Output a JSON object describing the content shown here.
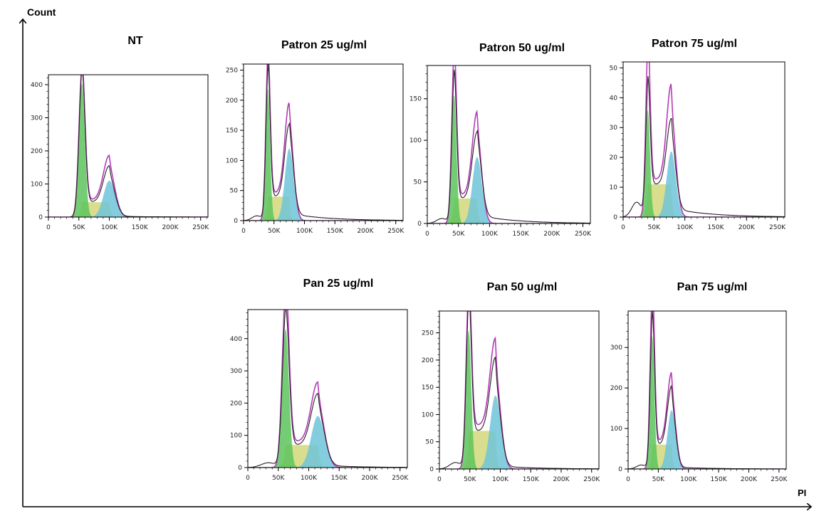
{
  "figure": {
    "y_axis_label": "Count",
    "x_axis_label": "PI"
  },
  "colors": {
    "g1_fill": "#5cc45c",
    "s_fill": "#d2d77a",
    "g2_fill": "#6ec4d9",
    "fit_line": "#b43cb4",
    "data_line": "#222222"
  },
  "chart_data": [
    {
      "type": "area",
      "title": "NT",
      "xticks": [
        "0",
        "50K",
        "100K",
        "150K",
        "200K",
        "250K"
      ],
      "xlim": [
        0,
        262000
      ],
      "yticks": [
        "0",
        "100",
        "200",
        "300",
        "400"
      ],
      "ylim": [
        0,
        430
      ],
      "g1": {
        "peak_x": 55000,
        "height": 405
      },
      "g2": {
        "peak_x": 100000,
        "height": 110
      },
      "s_height": 45,
      "fit_peaks": [
        415,
        135
      ],
      "tail": 3,
      "debris": 0
    },
    {
      "type": "area",
      "title": "Patron 25 ug/ml",
      "xticks": [
        "0",
        "50K",
        "100K",
        "150K",
        "200K",
        "250K"
      ],
      "xlim": [
        0,
        262000
      ],
      "yticks": [
        "0",
        "50",
        "100",
        "150",
        "200",
        "250"
      ],
      "ylim": [
        0,
        260
      ],
      "g1": {
        "peak_x": 40000,
        "height": 220
      },
      "g2": {
        "peak_x": 75000,
        "height": 120
      },
      "s_height": 40,
      "fit_peaks": [
        242,
        150
      ],
      "tail": 12,
      "debris": 8
    },
    {
      "type": "area",
      "title": "Patron 50 ug/ml",
      "xticks": [
        "0",
        "50K",
        "100K",
        "150K",
        "200K",
        "250K"
      ],
      "xlim": [
        0,
        262000
      ],
      "yticks": [
        "0",
        "50",
        "100",
        "150"
      ],
      "ylim": [
        0,
        190
      ],
      "g1": {
        "peak_x": 43000,
        "height": 155
      },
      "g2": {
        "peak_x": 80000,
        "height": 80
      },
      "s_height": 30,
      "fit_peaks": [
        182,
        100
      ],
      "tail": 10,
      "debris": 6
    },
    {
      "type": "area",
      "title": "Patron 75 ug/ml",
      "xticks": [
        "0",
        "50K",
        "100K",
        "150K",
        "200K",
        "250K"
      ],
      "xlim": [
        0,
        262000
      ],
      "yticks": [
        "0",
        "10",
        "20",
        "30",
        "40",
        "50"
      ],
      "ylim": [
        0,
        52
      ],
      "g1": {
        "peak_x": 40000,
        "height": 36
      },
      "g2": {
        "peak_x": 78000,
        "height": 22
      },
      "s_height": 11,
      "fit_peaks": [
        49,
        32
      ],
      "tail": 3,
      "debris": 5
    },
    {
      "type": "area",
      "title": "Pan 25 ug/ml",
      "xticks": [
        "0",
        "50K",
        "100K",
        "150K",
        "200K",
        "250K"
      ],
      "xlim": [
        0,
        262000
      ],
      "yticks": [
        "0",
        "100",
        "200",
        "300",
        "400"
      ],
      "ylim": [
        0,
        490
      ],
      "g1": {
        "peak_x": 62000,
        "height": 430
      },
      "g2": {
        "peak_x": 115000,
        "height": 160
      },
      "s_height": 70,
      "fit_peaks": [
        500,
        185
      ],
      "tail": 8,
      "debris": 15
    },
    {
      "type": "area",
      "title": "Pan 50 ug/ml",
      "xticks": [
        "0",
        "50K",
        "100K",
        "150K",
        "200K",
        "250K"
      ],
      "xlim": [
        0,
        262000
      ],
      "yticks": [
        "0",
        "50",
        "100",
        "150",
        "200",
        "250"
      ],
      "ylim": [
        0,
        290
      ],
      "g1": {
        "peak_x": 48000,
        "height": 255
      },
      "g2": {
        "peak_x": 92000,
        "height": 135
      },
      "s_height": 70,
      "fit_peaks": [
        285,
        160
      ],
      "tail": 6,
      "debris": 12
    },
    {
      "type": "area",
      "title": "Pan 75 ug/ml",
      "xticks": [
        "0",
        "50K",
        "100K",
        "150K",
        "200K",
        "250K"
      ],
      "xlim": [
        0,
        262000
      ],
      "yticks": [
        "0",
        "100",
        "200",
        "300"
      ],
      "ylim": [
        0,
        390
      ],
      "g1": {
        "peak_x": 40000,
        "height": 330
      },
      "g2": {
        "peak_x": 72000,
        "height": 145
      },
      "s_height": 60,
      "fit_peaks": [
        395,
        170
      ],
      "tail": 5,
      "debris": 10
    }
  ]
}
